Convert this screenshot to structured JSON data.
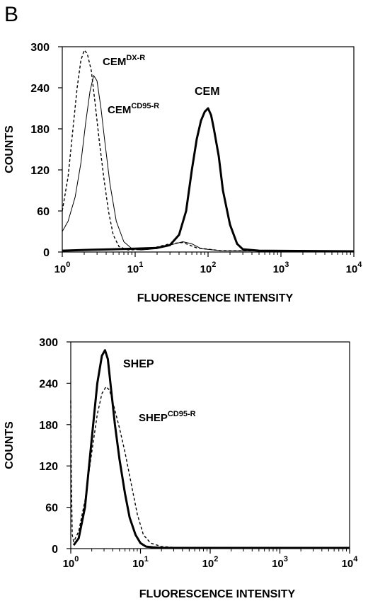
{
  "panel_label": "B",
  "chart_data": [
    {
      "type": "line",
      "xlabel": "FLUORESCENCE INTENSITY",
      "ylabel": "COUNTS",
      "xscale": "log",
      "xlim": [
        1,
        10000
      ],
      "ylim": [
        0,
        300
      ],
      "yticks": [
        "0",
        "60",
        "120",
        "180",
        "240",
        "300"
      ],
      "xticks": [
        {
          "base": "10",
          "exp": "0"
        },
        {
          "base": "10",
          "exp": "1"
        },
        {
          "base": "10",
          "exp": "2"
        },
        {
          "base": "10",
          "exp": "3"
        },
        {
          "base": "10",
          "exp": "4"
        }
      ],
      "annotations": [
        {
          "base": "CEM",
          "sup": "DX-R"
        },
        {
          "base": "CEM",
          "sup": "CD95-R"
        },
        {
          "base": "CEM",
          "sup": ""
        }
      ],
      "series": [
        {
          "name": "CEM",
          "style": "thick",
          "x": [
            1,
            2,
            5,
            10,
            20,
            30,
            40,
            50,
            60,
            70,
            80,
            90,
            100,
            110,
            120,
            140,
            160,
            200,
            250,
            300,
            500,
            10000
          ],
          "y": [
            2,
            3,
            4,
            5,
            6,
            10,
            25,
            60,
            120,
            165,
            192,
            205,
            210,
            200,
            180,
            140,
            90,
            40,
            12,
            4,
            2,
            1
          ]
        },
        {
          "name": "CEMCD95-R",
          "style": "thin",
          "x": [
            1,
            1.2,
            1.5,
            1.8,
            2.1,
            2.4,
            2.7,
            3.0,
            3.4,
            3.8,
            4.5,
            5.5,
            7,
            9,
            12,
            20,
            30,
            45,
            60,
            80,
            150,
            10000
          ],
          "y": [
            30,
            45,
            80,
            130,
            190,
            235,
            258,
            250,
            210,
            165,
            100,
            45,
            15,
            5,
            3,
            5,
            10,
            15,
            12,
            5,
            2,
            1
          ]
        },
        {
          "name": "CEMDX-R",
          "style": "dashed",
          "x": [
            1,
            1.2,
            1.4,
            1.6,
            1.8,
            2.0,
            2.2,
            2.5,
            2.8,
            3.2,
            3.7,
            4.3,
            5,
            6,
            8,
            15,
            30,
            45,
            70,
            150,
            10000
          ],
          "y": [
            60,
            110,
            180,
            240,
            280,
            295,
            290,
            265,
            220,
            165,
            110,
            60,
            25,
            8,
            3,
            4,
            12,
            14,
            6,
            2,
            1
          ]
        }
      ]
    },
    {
      "type": "line",
      "xlabel": "FLUORESCENCE INTENSITY",
      "ylabel": "COUNTS",
      "xscale": "log",
      "xlim": [
        1,
        10000
      ],
      "ylim": [
        0,
        300
      ],
      "yticks": [
        "0",
        "60",
        "120",
        "180",
        "240",
        "300"
      ],
      "xticks": [
        {
          "base": "10",
          "exp": "0"
        },
        {
          "base": "10",
          "exp": "1"
        },
        {
          "base": "10",
          "exp": "2"
        },
        {
          "base": "10",
          "exp": "3"
        },
        {
          "base": "10",
          "exp": "4"
        }
      ],
      "annotations": [
        {
          "base": "SHEP",
          "sup": ""
        },
        {
          "base": "SHEP",
          "sup": "CD95-R"
        }
      ],
      "series": [
        {
          "name": "SHEP",
          "style": "thick",
          "x": [
            1.1,
            1.3,
            1.6,
            2.0,
            2.4,
            2.8,
            3.1,
            3.4,
            3.8,
            4.3,
            5.0,
            6.0,
            7.0,
            8.5,
            10,
            12,
            15,
            20,
            50,
            10000
          ],
          "y": [
            5,
            15,
            60,
            160,
            240,
            280,
            288,
            275,
            230,
            180,
            130,
            80,
            45,
            20,
            8,
            3,
            2,
            1,
            1,
            1
          ]
        },
        {
          "name": "SHEPCD95-R",
          "style": "dashed",
          "x": [
            1,
            1.02,
            1.05,
            1.1,
            1.3,
            1.6,
            2.0,
            2.4,
            2.8,
            3.2,
            3.6,
            4.2,
            5.0,
            6.0,
            7.5,
            9,
            11,
            14,
            20,
            40,
            10000
          ],
          "y": [
            215,
            100,
            20,
            10,
            25,
            70,
            140,
            195,
            225,
            235,
            230,
            205,
            175,
            140,
            90,
            50,
            20,
            8,
            3,
            1,
            1
          ]
        }
      ]
    }
  ]
}
